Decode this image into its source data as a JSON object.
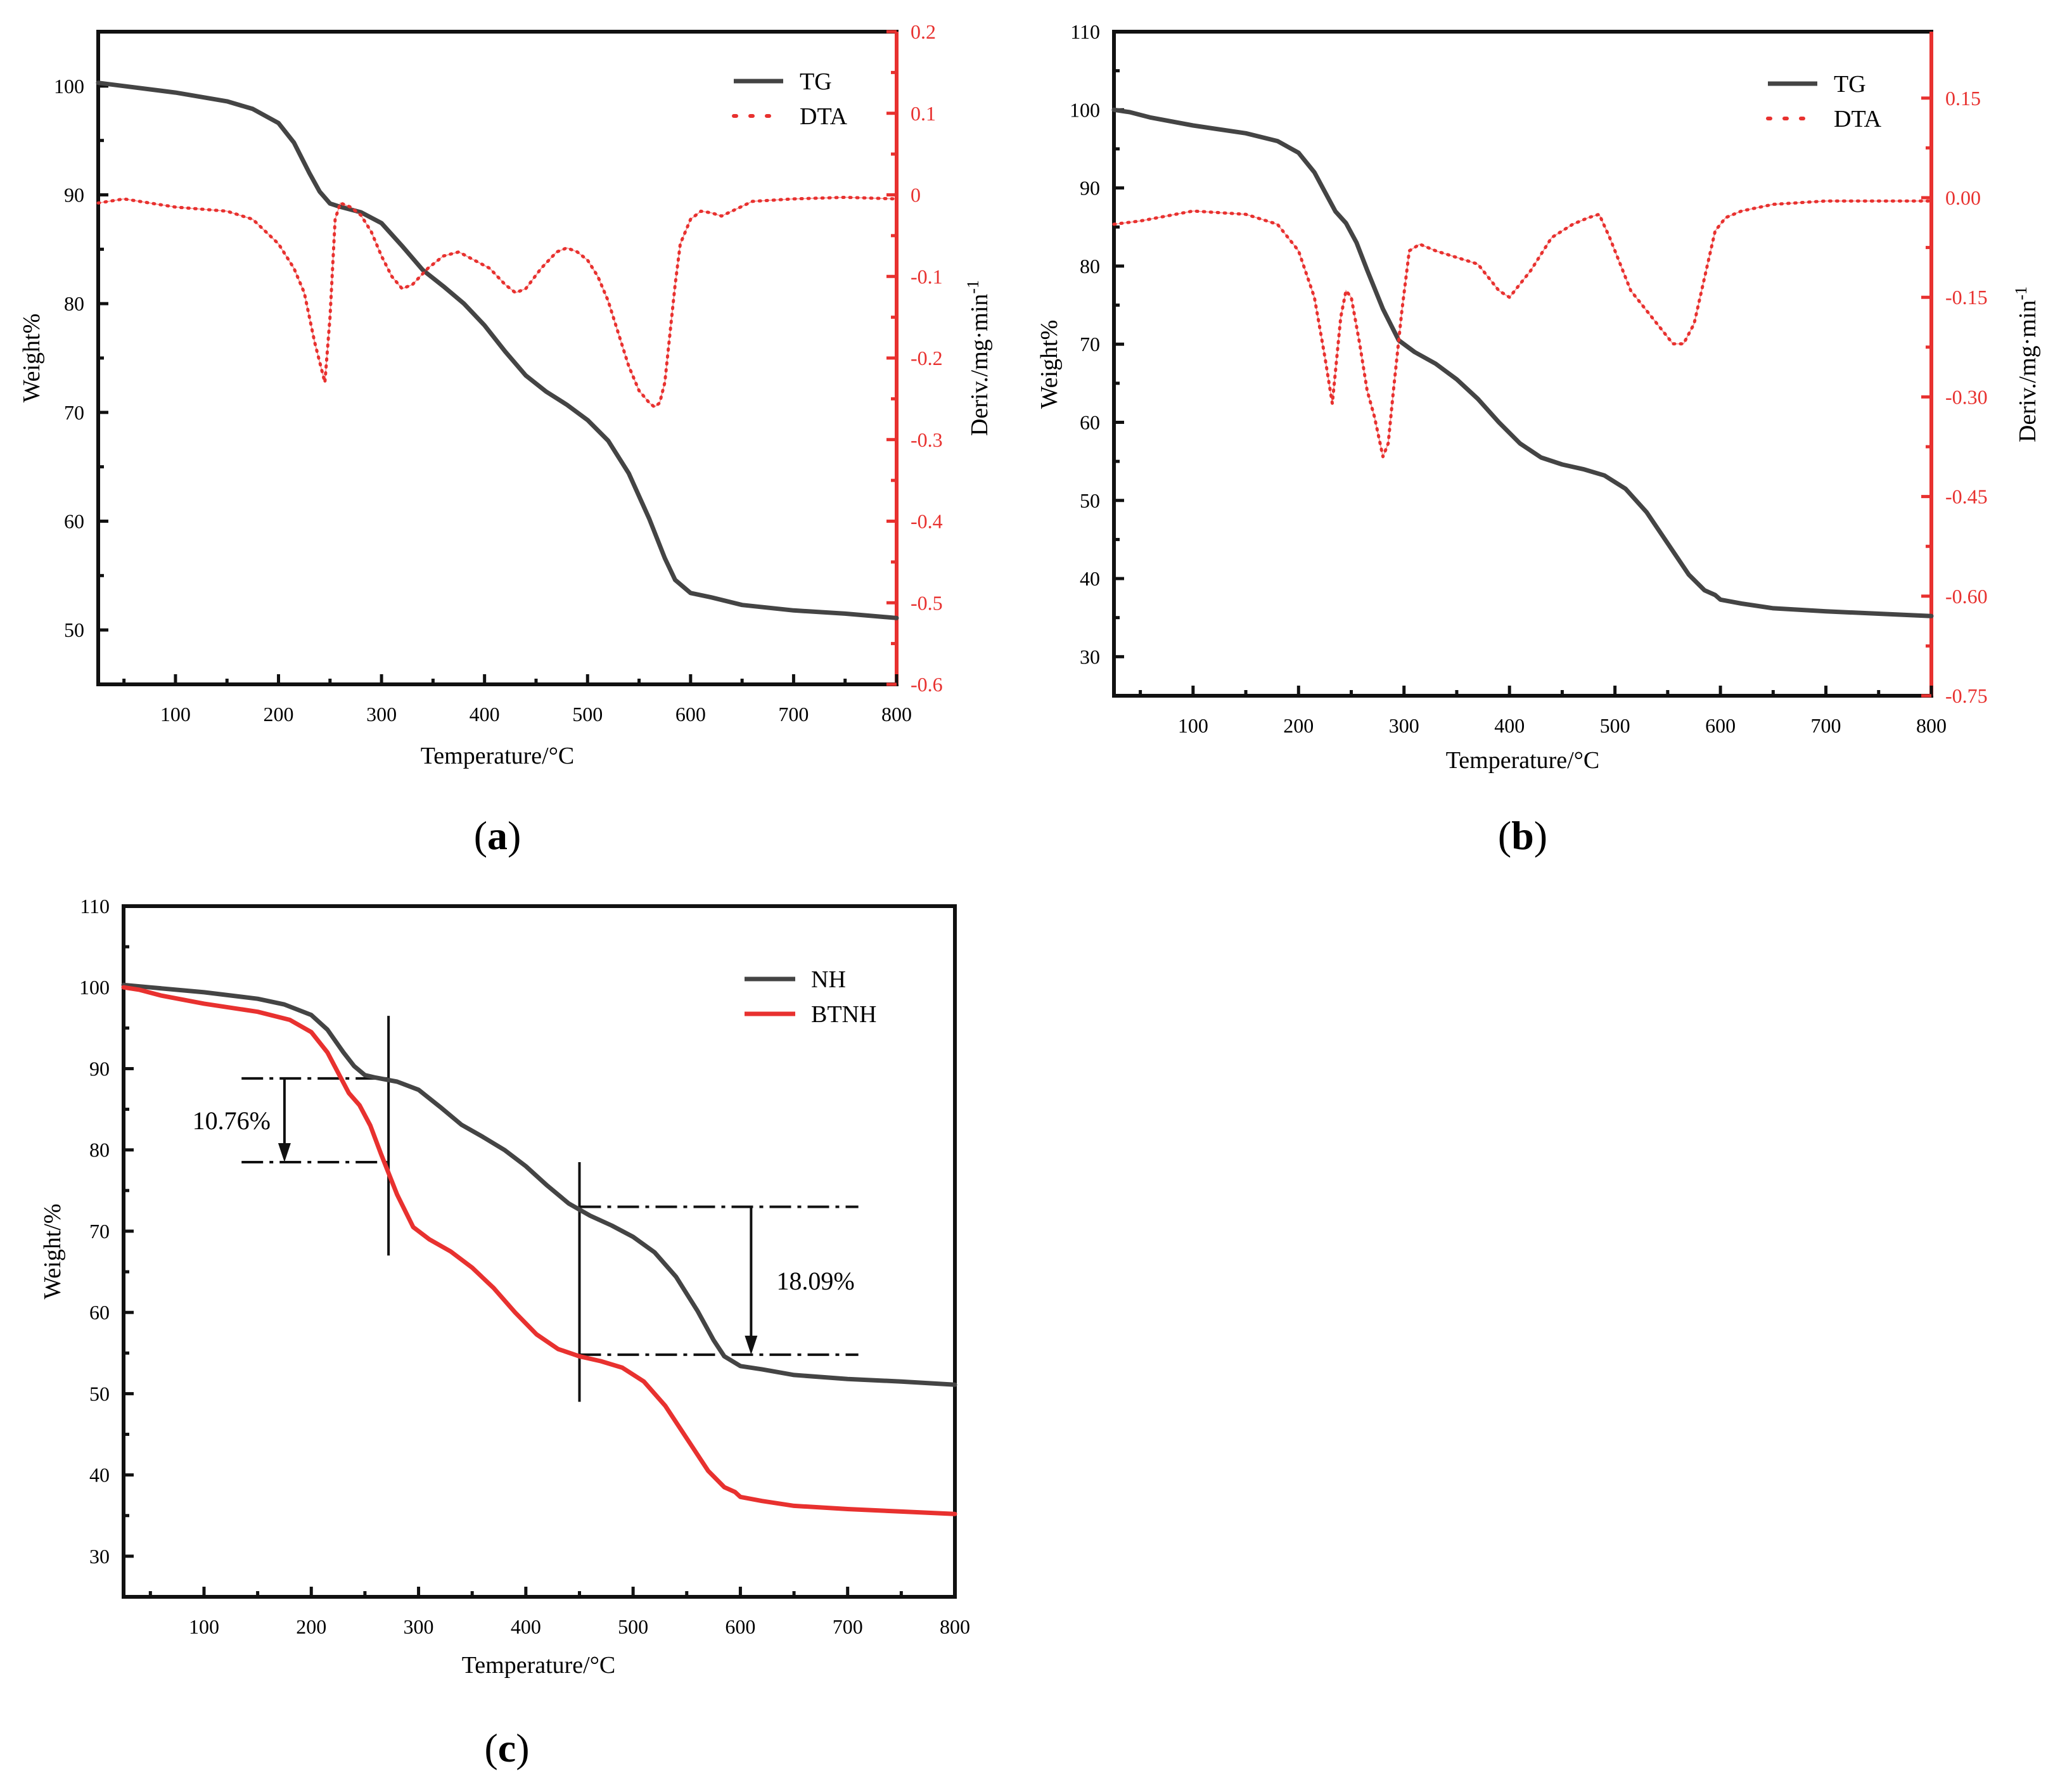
{
  "chart_data": [
    {
      "type": "line",
      "panel_label": "a",
      "xlabel": "Temperature/°C",
      "ylabel": "Weight%",
      "y2label": "Deriv./mg·min",
      "y2label_sup": "-1",
      "xlim": [
        25,
        800
      ],
      "ylim": [
        45,
        105
      ],
      "y2lim": [
        -0.6,
        0.2
      ],
      "x_ticks": [
        100,
        200,
        300,
        400,
        500,
        600,
        700,
        800
      ],
      "y_ticks": [
        50,
        60,
        70,
        80,
        90,
        100
      ],
      "y2_ticks": [
        -0.6,
        -0.5,
        -0.4,
        -0.3,
        -0.2,
        -0.1,
        0.0,
        0.1,
        0.2
      ],
      "legend": [
        "TG",
        "DTA"
      ],
      "series": [
        {
          "name": "TG",
          "axis": "left",
          "color": "#444444",
          "style": "solid",
          "x": [
            25,
            50,
            100,
            150,
            175,
            200,
            215,
            230,
            240,
            250,
            260,
            280,
            300,
            320,
            340,
            360,
            380,
            400,
            420,
            440,
            460,
            480,
            500,
            520,
            540,
            560,
            575,
            585,
            600,
            620,
            650,
            700,
            750,
            800
          ],
          "y": [
            100.3,
            100.0,
            99.4,
            98.6,
            97.9,
            96.6,
            94.8,
            92.0,
            90.3,
            89.2,
            88.9,
            88.4,
            87.4,
            85.3,
            83.1,
            81.6,
            80.0,
            78.0,
            75.6,
            73.4,
            71.9,
            70.7,
            69.3,
            67.4,
            64.4,
            60.2,
            56.6,
            54.6,
            53.4,
            53.0,
            52.3,
            51.8,
            51.5,
            51.1
          ]
        },
        {
          "name": "DTA",
          "axis": "right",
          "color": "#e8312f",
          "style": "dotted",
          "x": [
            25,
            50,
            100,
            150,
            175,
            200,
            215,
            225,
            235,
            245,
            250,
            255,
            260,
            270,
            280,
            290,
            300,
            310,
            320,
            330,
            345,
            360,
            375,
            390,
            405,
            420,
            430,
            440,
            455,
            470,
            480,
            490,
            500,
            510,
            520,
            530,
            540,
            550,
            560,
            565,
            570,
            575,
            580,
            585,
            590,
            600,
            610,
            620,
            630,
            640,
            660,
            700,
            750,
            800
          ],
          "y": [
            -0.01,
            -0.005,
            -0.015,
            -0.02,
            -0.03,
            -0.06,
            -0.09,
            -0.12,
            -0.18,
            -0.23,
            -0.15,
            -0.03,
            -0.01,
            -0.015,
            -0.025,
            -0.045,
            -0.075,
            -0.1,
            -0.115,
            -0.11,
            -0.09,
            -0.075,
            -0.07,
            -0.08,
            -0.09,
            -0.11,
            -0.12,
            -0.115,
            -0.09,
            -0.07,
            -0.065,
            -0.07,
            -0.08,
            -0.1,
            -0.13,
            -0.17,
            -0.21,
            -0.24,
            -0.255,
            -0.26,
            -0.255,
            -0.23,
            -0.17,
            -0.11,
            -0.06,
            -0.03,
            -0.02,
            -0.022,
            -0.026,
            -0.02,
            -0.008,
            -0.005,
            -0.003,
            -0.005
          ]
        }
      ]
    },
    {
      "type": "line",
      "panel_label": "b",
      "xlabel": "Temperature/°C",
      "ylabel": "Weight%",
      "y2label": "Deriv./mg·min",
      "y2label_sup": "-1",
      "xlim": [
        25,
        800
      ],
      "ylim": [
        25,
        110
      ],
      "y2lim": [
        -0.75,
        0.25
      ],
      "x_ticks": [
        100,
        200,
        300,
        400,
        500,
        600,
        700,
        800
      ],
      "y_ticks": [
        30,
        40,
        50,
        60,
        70,
        80,
        90,
        100,
        110
      ],
      "y2_ticks": [
        -0.75,
        -0.6,
        -0.45,
        -0.3,
        -0.15,
        0.0,
        0.15
      ],
      "y2_tick_labels": [
        "-0.75",
        "-0.60",
        "-0.45",
        "-0.30",
        "-0.15",
        "0.00",
        "0.15"
      ],
      "legend": [
        "TG",
        "DTA"
      ],
      "series": [
        {
          "name": "TG",
          "axis": "left",
          "color": "#444444",
          "style": "solid",
          "x": [
            25,
            40,
            60,
            100,
            150,
            180,
            200,
            215,
            225,
            235,
            245,
            255,
            265,
            280,
            295,
            310,
            330,
            350,
            370,
            390,
            410,
            430,
            450,
            470,
            490,
            510,
            530,
            550,
            570,
            585,
            595,
            600,
            620,
            650,
            700,
            750,
            800
          ],
          "y": [
            100.0,
            99.7,
            99.0,
            98.0,
            97.0,
            96.0,
            94.5,
            92.0,
            89.5,
            87.0,
            85.5,
            83.0,
            79.5,
            74.5,
            70.5,
            69.0,
            67.5,
            65.5,
            63.0,
            60.0,
            57.3,
            55.5,
            54.6,
            54.0,
            53.2,
            51.5,
            48.5,
            44.5,
            40.5,
            38.5,
            37.9,
            37.3,
            36.8,
            36.2,
            35.8,
            35.5,
            35.2
          ]
        },
        {
          "name": "DTA",
          "axis": "right",
          "color": "#e8312f",
          "style": "dotted",
          "x": [
            25,
            50,
            100,
            150,
            180,
            200,
            215,
            225,
            232,
            240,
            245,
            250,
            258,
            265,
            272,
            280,
            285,
            290,
            298,
            305,
            315,
            330,
            350,
            370,
            390,
            400,
            420,
            440,
            460,
            475,
            485,
            495,
            505,
            515,
            530,
            545,
            555,
            565,
            575,
            585,
            595,
            605,
            620,
            650,
            700,
            750,
            800
          ],
          "y": [
            -0.04,
            -0.035,
            -0.02,
            -0.025,
            -0.04,
            -0.08,
            -0.15,
            -0.24,
            -0.31,
            -0.18,
            -0.14,
            -0.15,
            -0.22,
            -0.29,
            -0.33,
            -0.39,
            -0.37,
            -0.29,
            -0.17,
            -0.08,
            -0.07,
            -0.08,
            -0.09,
            -0.1,
            -0.14,
            -0.15,
            -0.11,
            -0.06,
            -0.04,
            -0.03,
            -0.025,
            -0.06,
            -0.1,
            -0.14,
            -0.17,
            -0.2,
            -0.22,
            -0.22,
            -0.19,
            -0.12,
            -0.05,
            -0.03,
            -0.02,
            -0.01,
            -0.005,
            -0.005,
            -0.005
          ]
        }
      ]
    },
    {
      "type": "line",
      "panel_label": "c",
      "xlabel": "Temperature/°C",
      "ylabel": "Weight/%",
      "xlim": [
        25,
        800
      ],
      "ylim": [
        25,
        110
      ],
      "x_ticks": [
        100,
        200,
        300,
        400,
        500,
        600,
        700,
        800
      ],
      "y_ticks": [
        30,
        40,
        50,
        60,
        70,
        80,
        90,
        100,
        110
      ],
      "legend": [
        "NH",
        "BTNH"
      ],
      "series": [
        {
          "name": "NH",
          "color": "#444444",
          "style": "solid",
          "x": [
            25,
            50,
            100,
            150,
            175,
            200,
            215,
            230,
            240,
            250,
            260,
            280,
            300,
            320,
            340,
            360,
            380,
            400,
            420,
            440,
            460,
            480,
            500,
            520,
            540,
            560,
            575,
            585,
            600,
            620,
            650,
            700,
            750,
            800
          ],
          "y": [
            100.3,
            100.0,
            99.4,
            98.6,
            97.9,
            96.6,
            94.8,
            92.0,
            90.3,
            89.2,
            88.9,
            88.4,
            87.4,
            85.3,
            83.1,
            81.6,
            80.0,
            78.0,
            75.6,
            73.4,
            71.9,
            70.7,
            69.3,
            67.4,
            64.4,
            60.2,
            56.6,
            54.6,
            53.4,
            53.0,
            52.3,
            51.8,
            51.5,
            51.1
          ]
        },
        {
          "name": "BTNH",
          "color": "#e8312f",
          "style": "solid",
          "x": [
            25,
            40,
            60,
            100,
            150,
            180,
            200,
            215,
            225,
            235,
            245,
            255,
            265,
            280,
            295,
            310,
            330,
            350,
            370,
            390,
            410,
            430,
            450,
            470,
            490,
            510,
            530,
            550,
            570,
            585,
            595,
            600,
            620,
            650,
            700,
            750,
            800
          ],
          "y": [
            100.0,
            99.7,
            99.0,
            98.0,
            97.0,
            96.0,
            94.5,
            92.0,
            89.5,
            87.0,
            85.5,
            83.0,
            79.5,
            74.5,
            70.5,
            69.0,
            67.5,
            65.5,
            63.0,
            60.0,
            57.3,
            55.5,
            54.6,
            54.0,
            53.2,
            51.5,
            48.5,
            44.5,
            40.5,
            38.5,
            37.9,
            37.3,
            36.8,
            36.2,
            35.8,
            35.5,
            35.2
          ]
        }
      ],
      "annotations": [
        {
          "label": "10.76%",
          "x_from": 135,
          "x_to": 275,
          "y_top": 88.8,
          "y_bottom": 78.5,
          "arrow_x": 175,
          "marker_x": 272,
          "marker_y_range": [
            67,
            96.5
          ]
        },
        {
          "label": "18.09%",
          "x_from": 450,
          "x_to": 710,
          "y_top": 73.0,
          "y_bottom": 54.8,
          "arrow_x": 610,
          "marker_x": 450,
          "marker_y_range": [
            49,
            78.5
          ]
        }
      ]
    }
  ]
}
